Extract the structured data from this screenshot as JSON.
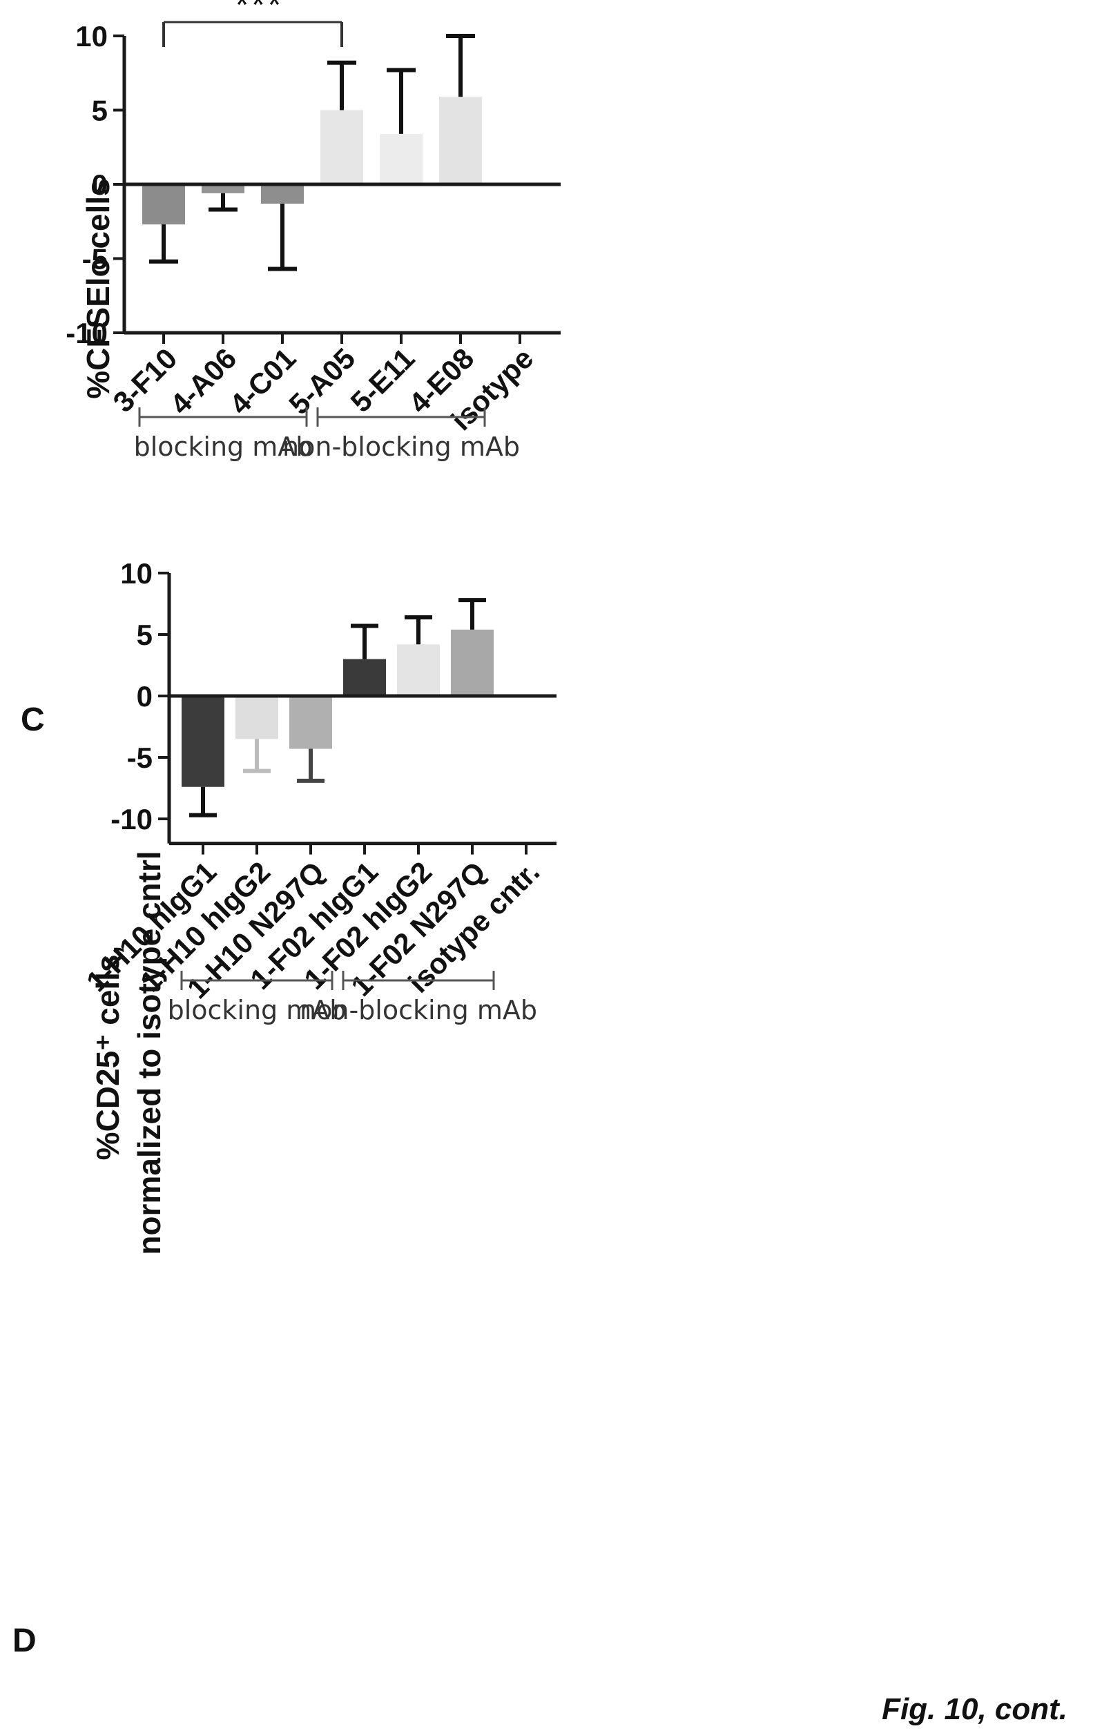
{
  "chart_data": [
    {
      "panel": "C",
      "type": "bar",
      "ylabel": "%CFSElo cells",
      "ylim": [
        -10,
        10
      ],
      "yticks": [
        10,
        5,
        0,
        -5,
        -10
      ],
      "categories": [
        "3-F10",
        "4-A06",
        "4-C01",
        "5-A05",
        "5-E11",
        "4-E08",
        "isotype"
      ],
      "values": [
        -2.7,
        -0.6,
        -1.3,
        5.0,
        3.4,
        5.9,
        0
      ],
      "errors": [
        2.5,
        1.1,
        4.4,
        3.2,
        4.3,
        4.1,
        0
      ],
      "colors": [
        "#8c8c8c",
        "#959595",
        "#8e8e8e",
        "#e6e6e6",
        "#ececec",
        "#e3e3e3",
        "#ffffff"
      ],
      "significance": {
        "from": 0,
        "to": 3,
        "label": "***"
      },
      "groups": [
        {
          "label": "blocking mAb",
          "from": 0,
          "to": 2
        },
        {
          "label": "non-blocking mAb",
          "from": 3,
          "to": 5
        }
      ]
    },
    {
      "panel": "D",
      "type": "bar",
      "ylabel_lines": [
        "%CD25⁺ cells,",
        "normalized to isotype cntrl"
      ],
      "ylim": [
        -12,
        10
      ],
      "yticks": [
        10,
        5,
        0,
        -5,
        -10
      ],
      "categories": [
        "1-H10 hIgG1",
        "1-H10 hIgG2",
        "1-H10 N297Q",
        "1-F02 hIgG1",
        "1-F02 hIgG2",
        "1-F02 N297Q",
        "isotype cntr."
      ],
      "values": [
        -7.4,
        -3.5,
        -4.3,
        3.0,
        4.2,
        5.4,
        0
      ],
      "errors": [
        2.3,
        2.6,
        2.6,
        2.7,
        2.2,
        2.4,
        0
      ],
      "colors": [
        "#3c3c3c",
        "#dedede",
        "#b0b0b0",
        "#3a3a3a",
        "#e4e4e4",
        "#a8a8a8",
        "#ffffff"
      ],
      "error_colors": [
        "#111111",
        "#bbbbbb",
        "#444444",
        "#111111",
        "#111111",
        "#111111",
        "#111111"
      ],
      "groups": [
        {
          "label": "blocking mAb",
          "from": 0,
          "to": 2
        },
        {
          "label": "non-blocking mAb",
          "from": 3,
          "to": 5
        }
      ]
    }
  ],
  "caption": "Fig. 10, cont."
}
